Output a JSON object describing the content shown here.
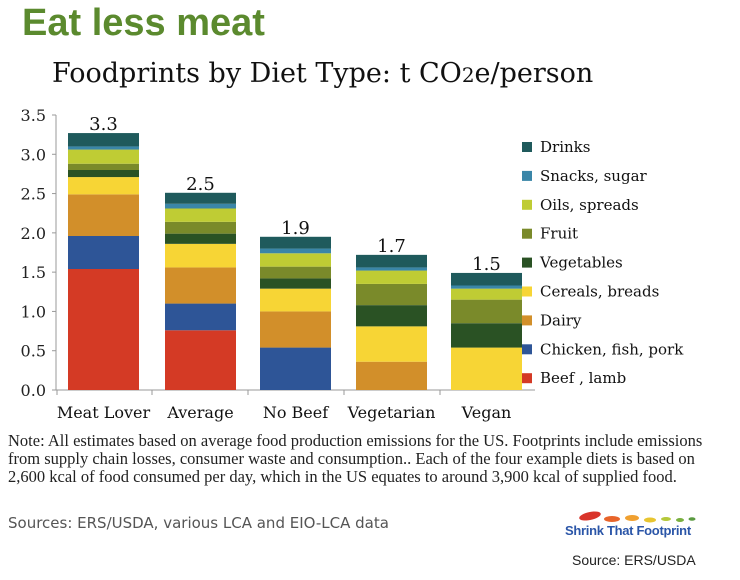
{
  "headline": "Eat less meat",
  "chart_data": {
    "type": "bar",
    "stacked": true,
    "title": "Foodprints by Diet Type: t CO2e/person",
    "xlabel": "",
    "ylabel": "",
    "ylim": [
      0,
      3.5
    ],
    "yticks": [
      "0.0",
      "0.5",
      "1.0",
      "1.5",
      "2.0",
      "2.5",
      "3.0",
      "3.5"
    ],
    "grid": false,
    "legend_placement": "right",
    "categories": [
      "Meat Lover",
      "Average",
      "No Beef",
      "Vegetarian",
      "Vegan"
    ],
    "totals_labels": [
      "3.3",
      "2.5",
      "1.9",
      "1.7",
      "1.5"
    ],
    "series": [
      {
        "name": "Beef , lamb",
        "color": "#d43a25",
        "values": [
          1.54,
          0.76,
          0,
          0,
          0
        ]
      },
      {
        "name": "Chicken, fish, pork",
        "color": "#2e5597",
        "values": [
          0.42,
          0.34,
          0.54,
          0,
          0
        ]
      },
      {
        "name": "Dairy",
        "color": "#d28f2a",
        "values": [
          0.53,
          0.46,
          0.46,
          0.36,
          0
        ]
      },
      {
        "name": "Cereals, breads",
        "color": "#f7d535",
        "values": [
          0.22,
          0.3,
          0.29,
          0.45,
          0.54
        ]
      },
      {
        "name": "Vegetables",
        "color": "#2a5224",
        "values": [
          0.09,
          0.13,
          0.13,
          0.27,
          0.31
        ]
      },
      {
        "name": "Fruit",
        "color": "#7a8a2a",
        "values": [
          0.08,
          0.15,
          0.15,
          0.27,
          0.3
        ]
      },
      {
        "name": "Oils, spreads",
        "color": "#bfcc34",
        "values": [
          0.18,
          0.17,
          0.17,
          0.17,
          0.14
        ]
      },
      {
        "name": "Snacks, sugar",
        "color": "#3a86a8",
        "values": [
          0.04,
          0.06,
          0.06,
          0.04,
          0.04
        ]
      },
      {
        "name": "Drinks",
        "color": "#1f5a5c",
        "values": [
          0.17,
          0.14,
          0.15,
          0.16,
          0.16
        ]
      }
    ]
  },
  "note": "Note: All estimates based on average food production emissions for the US. Footprints include emissions from supply chain losses, consumer waste and consumption..  Each of the four example diets is based on 2,600 kcal of food consumed per day, which in the US equates to around 3,900 kcal of supplied food.",
  "sources": "Sources:  ERS/USDA, various LCA and EIO-LCA data",
  "logo": "Shrink That Footprint",
  "source_footer": "Source: ERS/USDA"
}
